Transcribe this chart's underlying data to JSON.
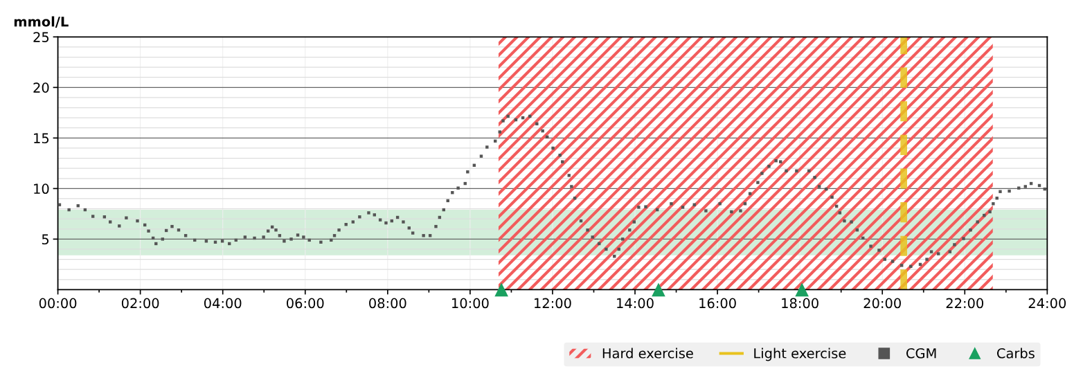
{
  "chart_data": {
    "type": "scatter",
    "ylabel": "mmol/L",
    "xlim": [
      0,
      24
    ],
    "ylim": [
      0,
      25
    ],
    "xticks": [
      {
        "value": 0,
        "label": "00:00"
      },
      {
        "value": 1,
        "label": null
      },
      {
        "value": 2,
        "label": "02:00"
      },
      {
        "value": 3,
        "label": null
      },
      {
        "value": 4,
        "label": "04:00"
      },
      {
        "value": 5,
        "label": null
      },
      {
        "value": 6,
        "label": "06:00"
      },
      {
        "value": 7,
        "label": null
      },
      {
        "value": 8,
        "label": "08:00"
      },
      {
        "value": 9,
        "label": null
      },
      {
        "value": 10,
        "label": "10:00"
      },
      {
        "value": 11,
        "label": null
      },
      {
        "value": 12,
        "label": "12:00"
      },
      {
        "value": 13,
        "label": null
      },
      {
        "value": 14,
        "label": "14:00"
      },
      {
        "value": 15,
        "label": null
      },
      {
        "value": 16,
        "label": "16:00"
      },
      {
        "value": 17,
        "label": null
      },
      {
        "value": 18,
        "label": "18:00"
      },
      {
        "value": 19,
        "label": null
      },
      {
        "value": 20,
        "label": "20:00"
      },
      {
        "value": 21,
        "label": null
      },
      {
        "value": 22,
        "label": "22:00"
      },
      {
        "value": 23,
        "label": null
      },
      {
        "value": 24,
        "label": "24:00"
      }
    ],
    "yticks": [
      {
        "value": 1,
        "label": null
      },
      {
        "value": 2,
        "label": null
      },
      {
        "value": 3,
        "label": null
      },
      {
        "value": 4,
        "label": null
      },
      5,
      {
        "value": 6,
        "label": null
      },
      {
        "value": 7,
        "label": null
      },
      {
        "value": 8,
        "label": null
      },
      {
        "value": 9,
        "label": null
      },
      10,
      {
        "value": 11,
        "label": null
      },
      {
        "value": 12,
        "label": null
      },
      {
        "value": 13,
        "label": null
      },
      {
        "value": 14,
        "label": null
      },
      15,
      {
        "value": 16,
        "label": null
      },
      {
        "value": 17,
        "label": null
      },
      {
        "value": 18,
        "label": null
      },
      {
        "value": 19,
        "label": null
      },
      20,
      {
        "value": 21,
        "label": null
      },
      {
        "value": 22,
        "label": null
      },
      {
        "value": 23,
        "label": null
      },
      {
        "value": 24,
        "label": null
      },
      25
    ],
    "grid": true,
    "legend": "bottom right",
    "bands": [
      {
        "axis": "y",
        "from": 3.4,
        "to": 7.9,
        "color": "#d3eeda"
      },
      {
        "axis": "x",
        "from": 10.69,
        "to": 22.68,
        "label": "Hard exercise",
        "color": "#f25c5c"
      }
    ],
    "ref_lines": [
      {
        "axis": "x",
        "value": 20.52,
        "label": "Light exercise",
        "color": "#e8c21e",
        "line_style": "dashed"
      }
    ],
    "series": [
      {
        "name": "CGM",
        "color": "#555555",
        "marker": "square",
        "x": [
          0.04,
          0.27,
          0.49,
          0.66,
          0.85,
          1.13,
          1.27,
          1.49,
          1.66,
          1.93,
          2.11,
          2.2,
          2.31,
          2.38,
          2.54,
          2.63,
          2.77,
          2.93,
          3.1,
          3.32,
          3.6,
          3.82,
          3.99,
          4.16,
          4.32,
          4.54,
          4.77,
          4.99,
          5.1,
          5.2,
          5.29,
          5.38,
          5.49,
          5.66,
          5.82,
          5.96,
          6.1,
          6.38,
          6.63,
          6.71,
          6.82,
          6.99,
          7.16,
          7.32,
          7.54,
          7.68,
          7.82,
          7.96,
          8.1,
          8.24,
          8.38,
          8.52,
          8.61,
          8.87,
          9.03,
          9.17,
          9.26,
          9.36,
          9.46,
          9.57,
          9.71,
          9.88,
          9.94,
          10.1,
          10.27,
          10.41,
          10.61,
          10.72,
          10.8,
          10.92,
          11.11,
          11.28,
          11.45,
          11.62,
          11.76,
          11.87,
          12.01,
          12.18,
          12.24,
          12.4,
          12.46,
          12.54,
          12.69,
          12.85,
          12.97,
          13.13,
          13.3,
          13.5,
          13.61,
          13.7,
          13.87,
          13.98,
          14.09,
          14.26,
          14.54,
          14.88,
          15.16,
          15.44,
          15.72,
          16.06,
          16.34,
          16.56,
          16.67,
          16.79,
          16.98,
          17.08,
          17.25,
          17.42,
          17.53,
          17.67,
          17.92,
          18.22,
          18.36,
          18.47,
          18.64,
          18.78,
          18.89,
          18.97,
          19.08,
          19.25,
          19.39,
          19.53,
          19.72,
          19.92,
          20.06,
          20.25,
          20.47,
          20.69,
          20.92,
          21.08,
          21.19,
          21.36,
          21.64,
          21.75,
          21.97,
          22.14,
          22.31,
          22.47,
          22.61,
          22.69,
          22.78,
          22.86,
          23.08,
          23.31,
          23.47,
          23.61,
          23.81,
          23.94
        ],
        "values": [
          8.4,
          7.9,
          8.3,
          7.9,
          7.25,
          7.2,
          6.7,
          6.3,
          7.1,
          6.8,
          6.4,
          5.8,
          5.1,
          4.55,
          5.0,
          5.85,
          6.25,
          5.9,
          5.35,
          4.9,
          4.8,
          4.7,
          4.8,
          4.55,
          4.9,
          5.2,
          5.1,
          5.2,
          5.8,
          6.2,
          5.9,
          5.35,
          4.8,
          5.0,
          5.4,
          5.2,
          4.9,
          4.7,
          4.9,
          5.35,
          5.9,
          6.45,
          6.7,
          7.2,
          7.6,
          7.4,
          6.9,
          6.6,
          6.8,
          7.15,
          6.7,
          6.1,
          5.6,
          5.35,
          5.35,
          6.25,
          7.15,
          7.9,
          8.8,
          9.6,
          10.05,
          10.5,
          11.65,
          12.3,
          13.2,
          14.1,
          14.7,
          15.6,
          16.7,
          17.15,
          16.8,
          17.0,
          17.15,
          16.4,
          15.7,
          15.1,
          14.0,
          13.3,
          12.65,
          11.3,
          10.2,
          9.05,
          6.8,
          5.9,
          5.2,
          4.55,
          4.0,
          3.3,
          4.0,
          5.0,
          5.9,
          6.7,
          8.15,
          8.2,
          7.9,
          8.5,
          8.15,
          8.4,
          7.8,
          8.5,
          7.7,
          7.8,
          8.5,
          9.5,
          10.6,
          11.5,
          12.2,
          12.75,
          12.65,
          11.75,
          11.75,
          11.75,
          11.1,
          10.2,
          9.95,
          9.15,
          8.25,
          7.6,
          6.8,
          6.7,
          5.9,
          5.1,
          4.3,
          3.9,
          3.0,
          2.8,
          2.4,
          2.3,
          2.5,
          3.0,
          3.75,
          3.55,
          3.75,
          4.45,
          5.05,
          5.9,
          6.7,
          7.35,
          7.7,
          8.5,
          9.05,
          9.7,
          9.75,
          10.05,
          10.2,
          10.5,
          10.3,
          9.95
        ]
      },
      {
        "name": "Carbs",
        "color": "#1aa060",
        "marker": "triangle",
        "x": [
          10.76,
          14.57,
          18.05
        ],
        "values": [
          0,
          0,
          0
        ]
      }
    ]
  }
}
